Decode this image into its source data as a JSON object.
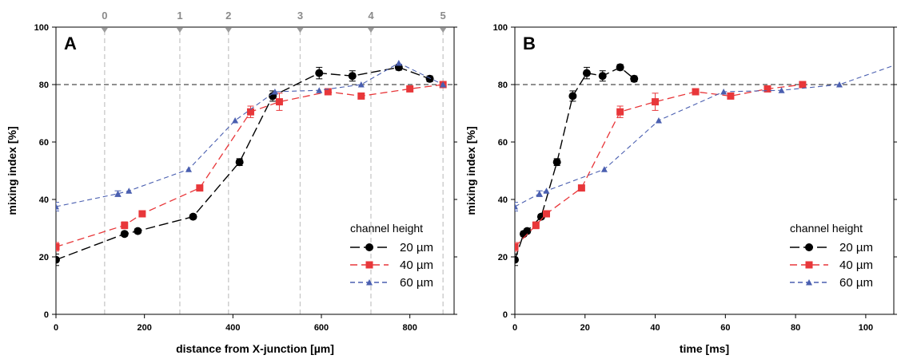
{
  "chart_data": [
    {
      "type": "line",
      "panel_label": "A",
      "xlabel": "distance from X-junction [µm]",
      "ylabel": "mixing index [%]",
      "xlim": [
        0,
        900
      ],
      "ylim": [
        0,
        100
      ],
      "xticks": [
        "0",
        "200",
        "400",
        "600",
        "800"
      ],
      "yticks": [
        "0",
        "20",
        "40",
        "60",
        "80",
        "100"
      ],
      "reference_line_y": 80,
      "position_markers": [
        {
          "label": "0",
          "x": 110
        },
        {
          "label": "1",
          "x": 280
        },
        {
          "label": "2",
          "x": 390
        },
        {
          "label": "3",
          "x": 552
        },
        {
          "label": "4",
          "x": 712
        },
        {
          "label": "5",
          "x": 875
        }
      ],
      "legend": {
        "title": "channel height",
        "placement": "bottom-right"
      },
      "series": [
        {
          "name": "20 µm",
          "color": "#000000",
          "marker": "circle",
          "x": [
            0,
            155,
            185,
            310,
            415,
            490,
            595,
            670,
            775,
            845
          ],
          "y": [
            19,
            28,
            29,
            34,
            53,
            76,
            84,
            83,
            86,
            82
          ],
          "err": [
            2,
            0.8,
            0.8,
            0.8,
            1.2,
            1.8,
            2,
            1.8,
            1,
            1
          ]
        },
        {
          "name": "40 µm",
          "color": "#e8373a",
          "marker": "square",
          "x": [
            0,
            155,
            195,
            325,
            440,
            505,
            615,
            690,
            800,
            875
          ],
          "y": [
            23.5,
            31,
            35,
            44,
            70.5,
            74,
            77.5,
            76,
            78.5,
            80
          ],
          "err": [
            1.5,
            1.2,
            1,
            1,
            2,
            3,
            1,
            1,
            0.8,
            0.8
          ]
        },
        {
          "name": "60 µm",
          "color": "#4a5fb0",
          "marker": "triangle",
          "x": [
            0,
            140,
            165,
            300,
            405,
            495,
            595,
            690,
            775,
            875
          ],
          "y": [
            37.5,
            42,
            43,
            50.5,
            67.5,
            77.5,
            78,
            80,
            87.5,
            80
          ],
          "err": [
            1.5,
            1,
            0.5,
            0.5,
            0.5,
            0.5,
            0.5,
            0.5,
            0.5,
            0.5
          ]
        }
      ]
    },
    {
      "type": "line",
      "panel_label": "B",
      "xlabel": "time [ms]",
      "ylabel": "mixing index [%]",
      "xlim": [
        0,
        108
      ],
      "ylim": [
        0,
        100
      ],
      "xticks": [
        "0",
        "20",
        "40",
        "60",
        "80",
        "100"
      ],
      "yticks": [
        "0",
        "20",
        "40",
        "60",
        "80",
        "100"
      ],
      "reference_line_y": 80,
      "legend": {
        "title": "channel height",
        "placement": "bottom-right"
      },
      "series": [
        {
          "name": "20 µm",
          "color": "#000000",
          "marker": "circle",
          "x": [
            0,
            2.5,
            3.5,
            7.5,
            12,
            16.5,
            20.5,
            25,
            30,
            34
          ],
          "y": [
            19,
            28,
            29,
            34,
            53,
            76,
            84,
            83,
            86,
            82
          ],
          "err": [
            2,
            0.8,
            0.8,
            0.8,
            1.2,
            1.8,
            2,
            1.8,
            1,
            1
          ]
        },
        {
          "name": "40 µm",
          "color": "#e8373a",
          "marker": "square",
          "x": [
            0,
            6,
            9,
            19,
            30,
            40,
            51.5,
            61.5,
            72,
            82
          ],
          "y": [
            23.5,
            31,
            35,
            44,
            70.5,
            74,
            77.5,
            76,
            78.5,
            80
          ],
          "err": [
            1.5,
            1.2,
            1,
            1,
            2,
            3,
            1,
            1,
            0.8,
            0.8
          ]
        },
        {
          "name": "60 µm",
          "color": "#4a5fb0",
          "marker": "triangle",
          "x": [
            0,
            7,
            9,
            25.5,
            41,
            59.5,
            76,
            92.5,
            110
          ],
          "y": [
            37.5,
            42,
            43,
            50.5,
            67.5,
            77.5,
            78,
            80,
            87.5
          ],
          "err": [
            1.5,
            1,
            0.5,
            0.5,
            0.5,
            0.5,
            0.5,
            0.5,
            0.5
          ]
        }
      ]
    }
  ]
}
